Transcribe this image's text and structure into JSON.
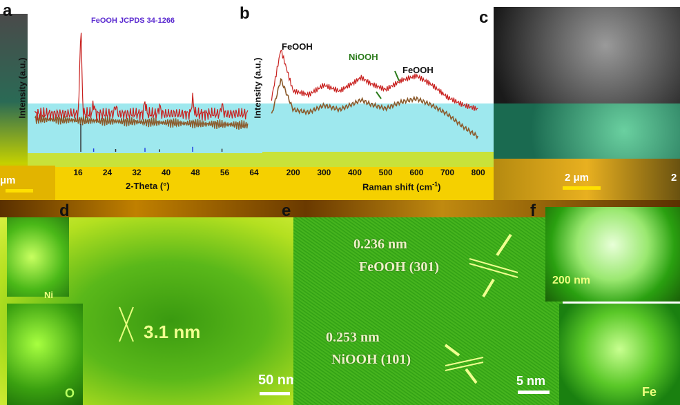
{
  "panels": {
    "a": {
      "letter": "a",
      "ylabel": "Intensity (a.u.)",
      "xlabel": "2-Theta (°)",
      "legend_ref": "FeOOH JCPDS 34-1266",
      "series_colors": {
        "obs": "#c8201e",
        "fit": "#8b5a2b",
        "ref_a": "#2040e0",
        "ref_b": "#333333"
      }
    },
    "b": {
      "letter": "b",
      "ylabel": "Intensity (a.u.)",
      "xlabel": "Raman shift (cm",
      "xlabel_sup": "-1",
      "xlabel_close": ")",
      "annotations": [
        {
          "text": "FeOOH",
          "color": "#111111"
        },
        {
          "text": "NiOOH",
          "color": "#2a7a1a"
        },
        {
          "text": "FeOOH",
          "color": "#111111"
        }
      ]
    },
    "c": {
      "letter": "c",
      "scale_left": "μm",
      "scale_right": "2 μm",
      "scale_edge": "2"
    },
    "d": {
      "letter": "d",
      "measure": "3.1 nm",
      "scale": "50 nm",
      "corner_text": "Ni"
    },
    "e": {
      "letter": "e",
      "fringe1": "0.236 nm",
      "fringe1_plane": "FeOOH (301)",
      "fringe2": "0.253 nm",
      "fringe2_plane": "NiOOH (101)",
      "scale": "5 nm"
    },
    "f": {
      "letter": "f",
      "scale": "200 nm",
      "map_o": "O",
      "map_fe": "Fe"
    }
  },
  "chart_data": [
    {
      "type": "line",
      "title": "",
      "xlabel": "2-Theta (°)",
      "ylabel": "Intensity (a.u.)",
      "xlim": [
        2,
        66
      ],
      "xticks": [
        8,
        16,
        24,
        32,
        40,
        48,
        56,
        64
      ],
      "series": [
        {
          "name": "FeOOH JCPDS 34-1266",
          "x": [
            16.5,
            20,
            26,
            34,
            38,
            47,
            55
          ],
          "values": [
            100,
            12,
            10,
            14,
            9,
            18,
            11
          ]
        }
      ]
    },
    {
      "type": "line",
      "title": "",
      "xlabel": "Raman shift (cm-1)",
      "ylabel": "Intensity (a.u.)",
      "xlim": [
        100,
        850
      ],
      "xticks": [
        200,
        300,
        400,
        500,
        600,
        700,
        800
      ],
      "series": [
        {
          "x": [
            130,
            160,
            200,
            250,
            300,
            350,
            400,
            420,
            450,
            500,
            550,
            600,
            650,
            700,
            750,
            800
          ],
          "values": [
            20,
            85,
            30,
            25,
            38,
            30,
            42,
            48,
            40,
            32,
            44,
            50,
            38,
            22,
            12,
            6
          ]
        }
      ],
      "peaks": [
        {
          "label": "FeOOH",
          "x": 160
        },
        {
          "label": "NiOOH",
          "x": 420
        },
        {
          "label": "FeOOH",
          "x": 600
        }
      ]
    }
  ]
}
